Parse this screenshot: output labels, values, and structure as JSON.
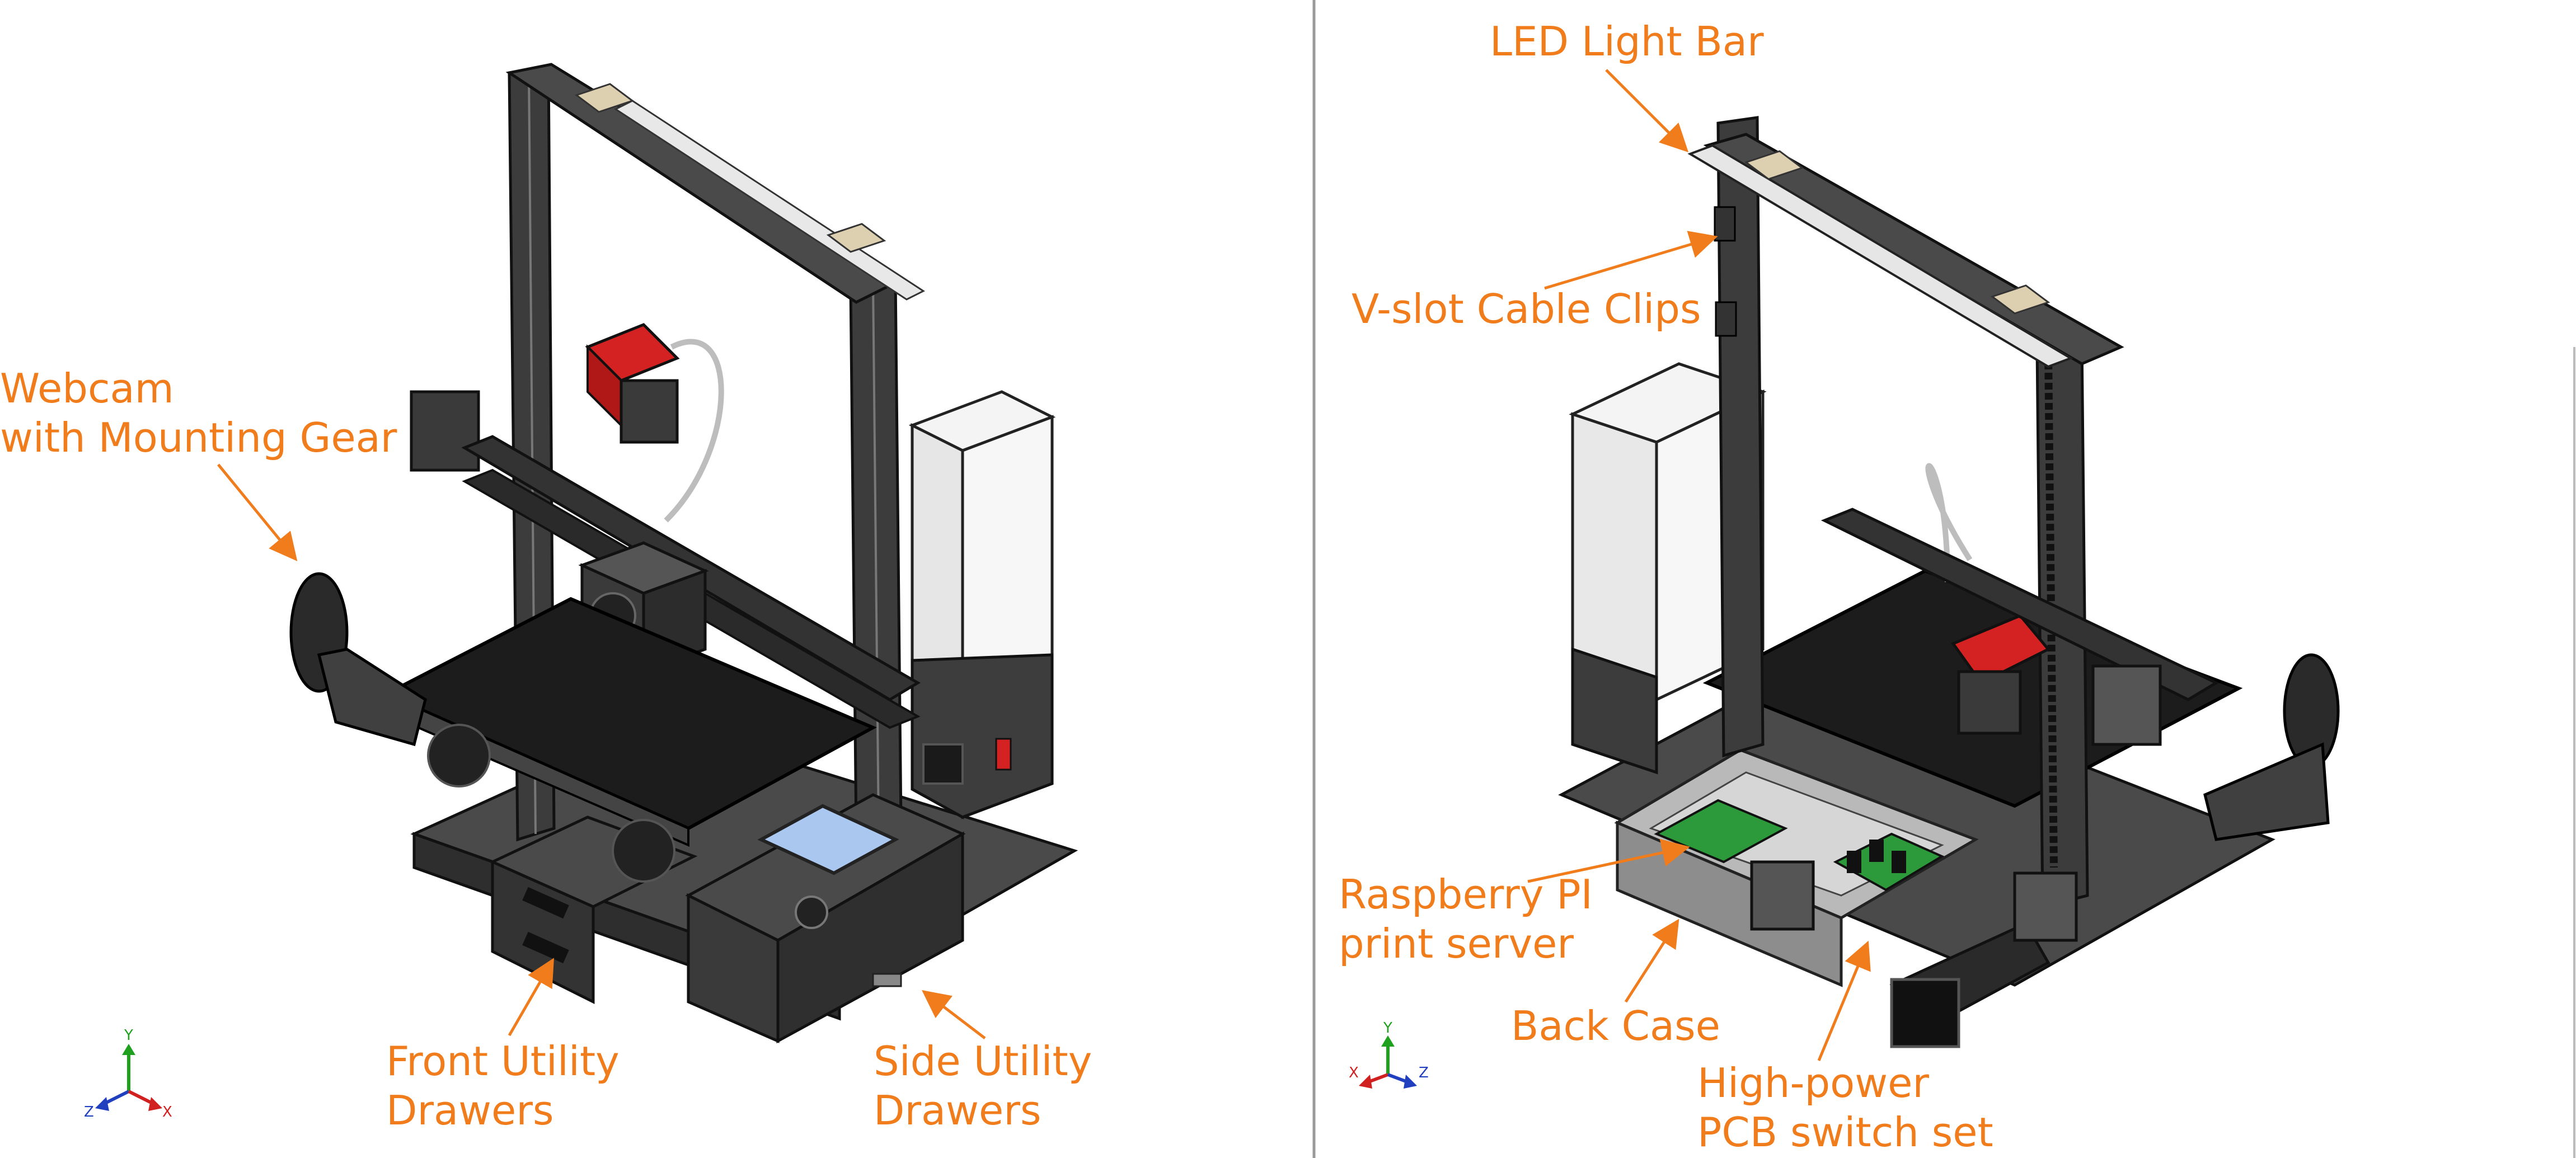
{
  "colors": {
    "callout": "#f07c1c",
    "frame": "#3c3c3c",
    "frame_light": "#6a6a6a",
    "bed": "#1c1c1c",
    "extruder": "#d42222",
    "psu": "#eeeeee",
    "screen": "#a9c7ef",
    "pcb": "#2c9a3a",
    "axis_y": "#1fa01f",
    "axis_x": "#d02020",
    "axis_z": "#2040c0",
    "divider": "#9a9a9a"
  },
  "left_view": {
    "callouts": {
      "webcam": [
        "Webcam",
        "with Mounting Gear"
      ],
      "front_drawers": [
        "Front Utility",
        "Drawers"
      ],
      "side_drawers": [
        "Side Utility",
        "Drawers"
      ]
    },
    "triad": {
      "y": "Y",
      "z": "Z",
      "x": "X"
    }
  },
  "right_view": {
    "callouts": {
      "led_bar": [
        "LED Light Bar"
      ],
      "cable_clips": [
        "V-slot Cable Clips"
      ],
      "raspberry_pi": [
        "Raspberry PI",
        "print server"
      ],
      "back_case": [
        "Back Case"
      ],
      "pcb_switch": [
        "High-power",
        "PCB switch set"
      ]
    },
    "triad": {
      "x": "X",
      "y": "Y",
      "z": "Z"
    }
  }
}
